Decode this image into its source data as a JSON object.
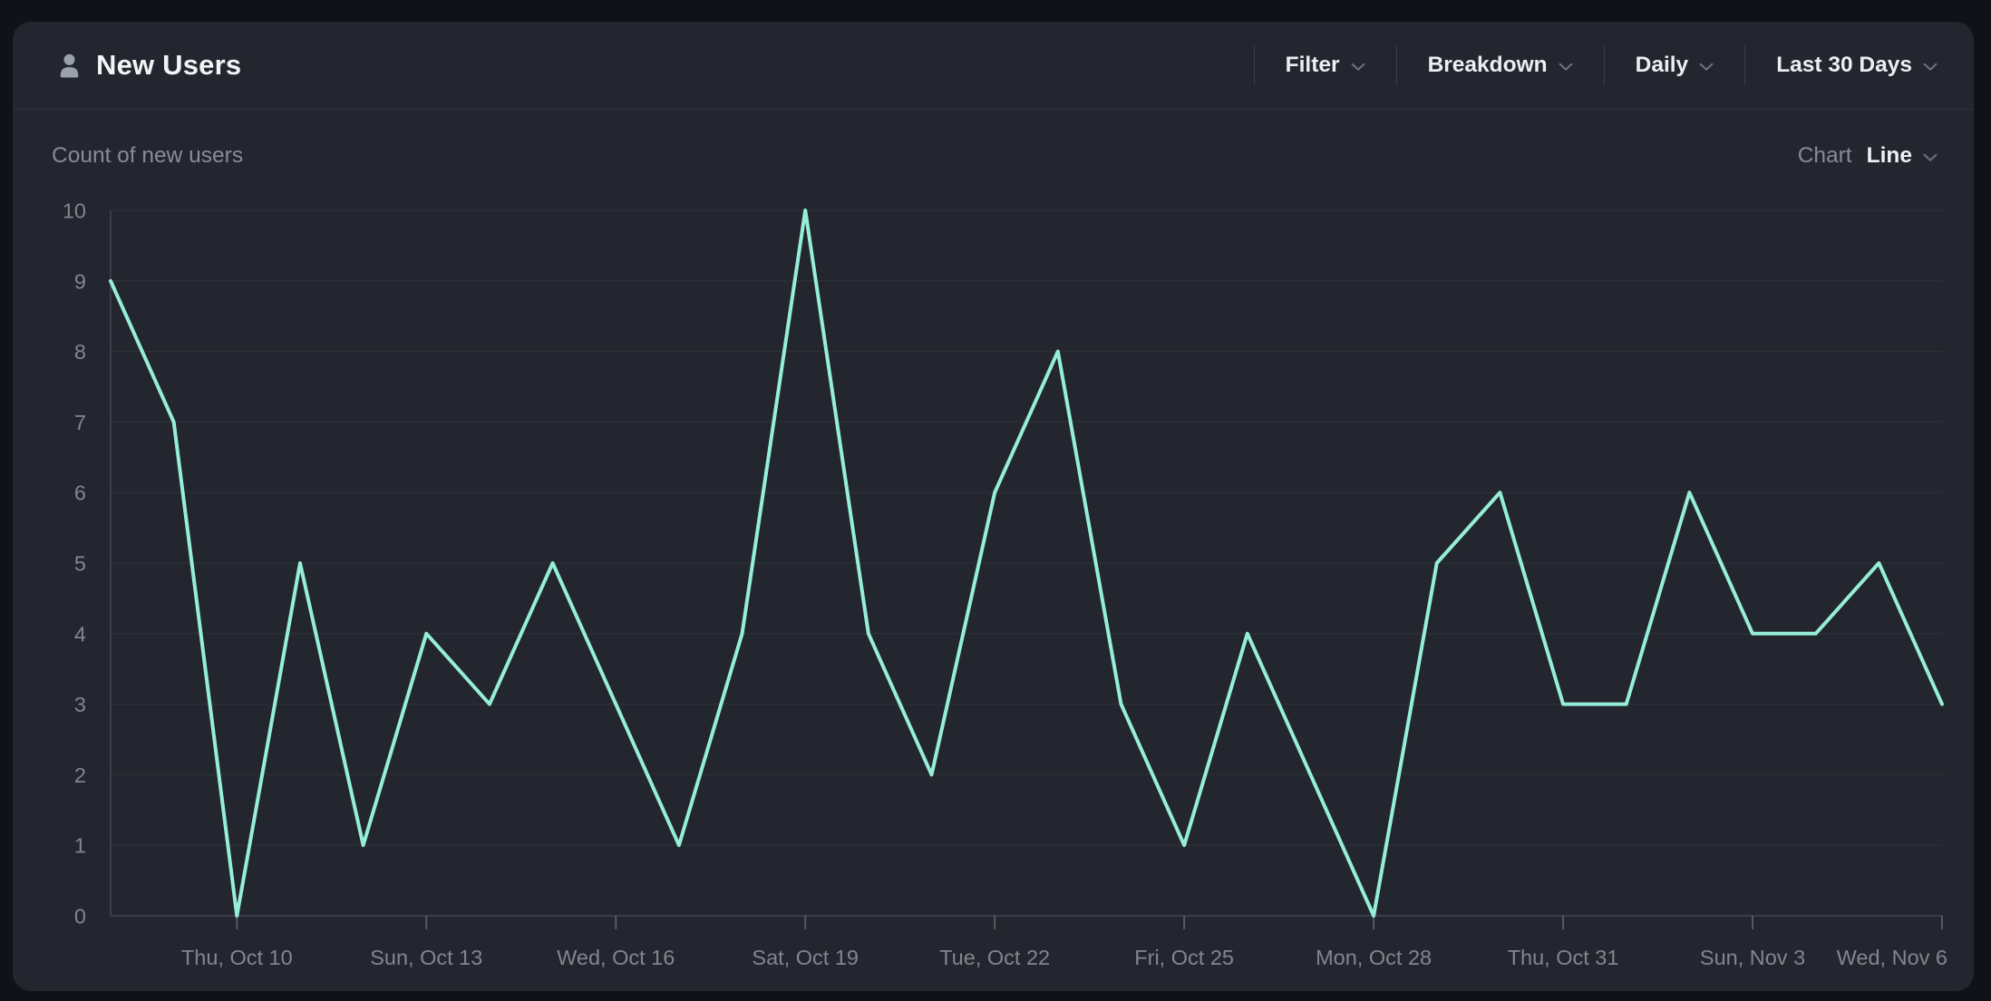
{
  "header": {
    "title": "New Users",
    "controls": [
      {
        "label": "Filter"
      },
      {
        "label": "Breakdown"
      },
      {
        "label": "Daily"
      },
      {
        "label": "Last 30 Days"
      }
    ]
  },
  "subheader": {
    "metric_label": "Count of new users",
    "chart_type_label": "Chart",
    "chart_type_value": "Line"
  },
  "colors": {
    "page_bg": "#111217",
    "card_bg": "#23262e",
    "accent_line": "#96eeda",
    "gridline": "#2b2f37",
    "axis_line": "#3a3e48",
    "tick_mark": "#565a63",
    "axis_label": "#81868f"
  },
  "chart_data": {
    "type": "line",
    "title": "Count of new users",
    "x": [
      "Tue, Oct 8",
      "Wed, Oct 9",
      "Thu, Oct 10",
      "Fri, Oct 11",
      "Sat, Oct 12",
      "Sun, Oct 13",
      "Mon, Oct 14",
      "Tue, Oct 15",
      "Wed, Oct 16",
      "Thu, Oct 17",
      "Fri, Oct 18",
      "Sat, Oct 19",
      "Sun, Oct 20",
      "Mon, Oct 21",
      "Tue, Oct 22",
      "Wed, Oct 23",
      "Thu, Oct 24",
      "Fri, Oct 25",
      "Sat, Oct 26",
      "Sun, Oct 27",
      "Mon, Oct 28",
      "Tue, Oct 29",
      "Wed, Oct 30",
      "Thu, Oct 31",
      "Fri, Nov 1",
      "Sat, Nov 2",
      "Sun, Nov 3",
      "Mon, Nov 4",
      "Tue, Nov 5",
      "Wed, Nov 6"
    ],
    "values": [
      9,
      7,
      0,
      5,
      1,
      4,
      3,
      5,
      3,
      1,
      4,
      10,
      4,
      2,
      6,
      8,
      3,
      1,
      4,
      2,
      0,
      5,
      6,
      3,
      3,
      6,
      4,
      4,
      5,
      3
    ],
    "x_tick_indices": [
      2,
      5,
      8,
      11,
      14,
      17,
      20,
      23,
      26,
      29
    ],
    "x_tick_labels": [
      "Thu, Oct 10",
      "Sun, Oct 13",
      "Wed, Oct 16",
      "Sat, Oct 19",
      "Tue, Oct 22",
      "Fri, Oct 25",
      "Mon, Oct 28",
      "Thu, Oct 31",
      "Sun, Nov 3",
      "Wed, Nov 6"
    ],
    "y_ticks": [
      0,
      1,
      2,
      3,
      4,
      5,
      6,
      7,
      8,
      9,
      10
    ],
    "ylim": [
      0,
      10
    ],
    "line_color": "#96eeda",
    "grid": true,
    "legend": false
  }
}
